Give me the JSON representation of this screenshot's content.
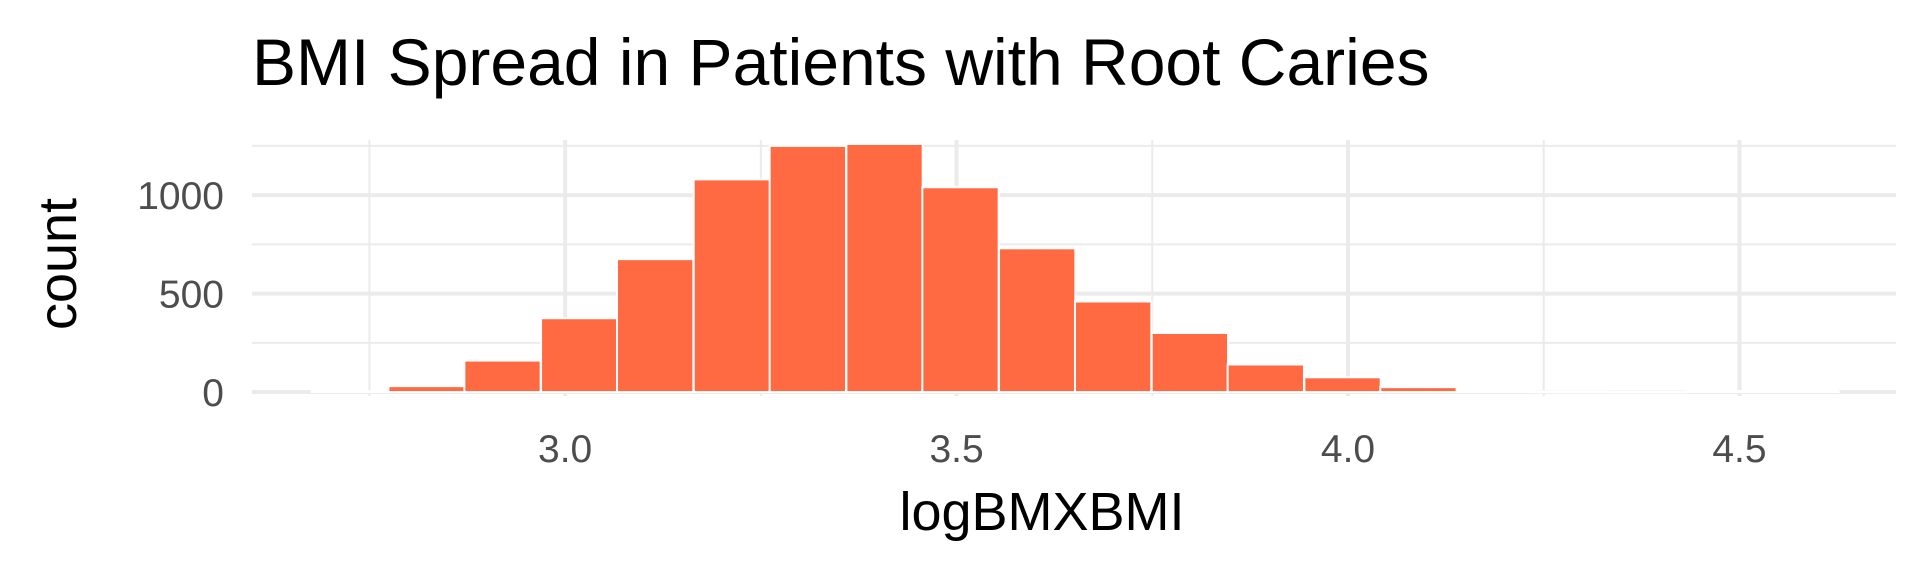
{
  "chart_data": {
    "type": "bar",
    "title": "BMI Spread in Patients with Root Caries",
    "xlabel": "logBMXBMI",
    "ylabel": "count",
    "xlim": [
      2.6,
      4.7
    ],
    "ylim": [
      -20,
      1280
    ],
    "x_ticks": [
      3.0,
      3.5,
      4.0,
      4.5
    ],
    "x_tick_labels": [
      "3.0",
      "3.5",
      "4.0",
      "4.5"
    ],
    "y_ticks": [
      0,
      500,
      1000
    ],
    "y_tick_labels": [
      "0",
      "500",
      "1000"
    ],
    "bin_width": 0.0975,
    "bins": [
      {
        "x": 2.725,
        "count": 5
      },
      {
        "x": 2.823,
        "count": 30
      },
      {
        "x": 2.92,
        "count": 160
      },
      {
        "x": 3.018,
        "count": 375
      },
      {
        "x": 3.115,
        "count": 675
      },
      {
        "x": 3.213,
        "count": 1080
      },
      {
        "x": 3.31,
        "count": 1250
      },
      {
        "x": 3.408,
        "count": 1260
      },
      {
        "x": 3.505,
        "count": 1040
      },
      {
        "x": 3.603,
        "count": 730
      },
      {
        "x": 3.7,
        "count": 460
      },
      {
        "x": 3.798,
        "count": 300
      },
      {
        "x": 3.895,
        "count": 140
      },
      {
        "x": 3.993,
        "count": 75
      },
      {
        "x": 4.09,
        "count": 25
      },
      {
        "x": 4.188,
        "count": 8
      },
      {
        "x": 4.285,
        "count": 4
      },
      {
        "x": 4.383,
        "count": 3
      },
      {
        "x": 4.48,
        "count": 5
      },
      {
        "x": 4.578,
        "count": 5
      }
    ],
    "bar_color": "#ff6a43",
    "bar_border_color": "#ffffff",
    "grid": true,
    "legend": "none"
  }
}
